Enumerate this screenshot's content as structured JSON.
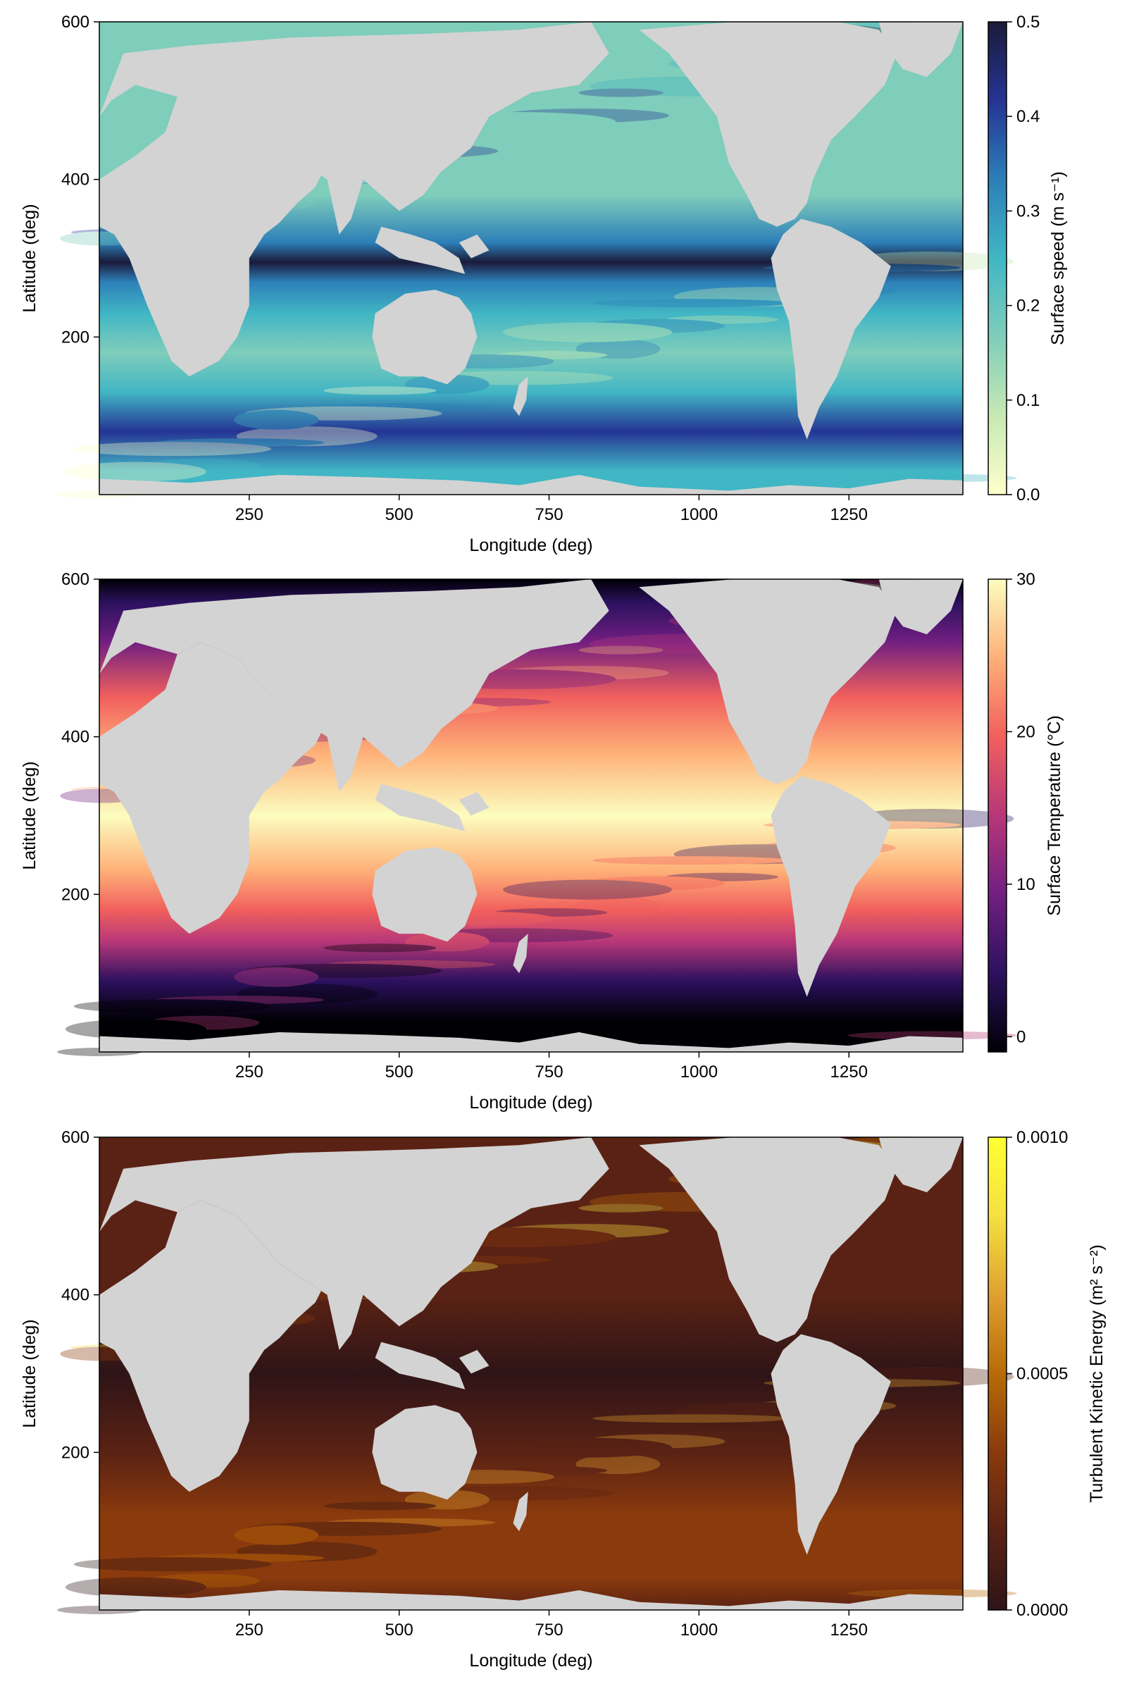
{
  "chart_data": [
    {
      "type": "heatmap",
      "title": "",
      "xlabel": "Longitude (deg)",
      "ylabel": "Latitude (deg)",
      "xlim": [
        0,
        1440
      ],
      "ylim": [
        0,
        600
      ],
      "x_ticks": [
        250,
        500,
        750,
        1000,
        1250
      ],
      "y_ticks": [
        200,
        400,
        600
      ],
      "colorbar": {
        "label": "Surface speed (m s⁻¹)",
        "range": [
          0,
          0.5
        ],
        "ticks": [
          "0.0",
          "0.1",
          "0.2",
          "0.3",
          "0.4",
          "0.5"
        ],
        "tick_values": [
          0,
          0.1,
          0.2,
          0.3,
          0.4,
          0.5
        ],
        "colormap": [
          "#ffffcc",
          "#c7e9b4",
          "#7fcdbb",
          "#41b6c4",
          "#2c7fb8",
          "#253494",
          "#1b1b3a"
        ]
      },
      "land_color": "#d3d3d3"
    },
    {
      "type": "heatmap",
      "title": "",
      "xlabel": "Longitude (deg)",
      "ylabel": "Latitude (deg)",
      "xlim": [
        0,
        1440
      ],
      "ylim": [
        0,
        600
      ],
      "x_ticks": [
        250,
        500,
        750,
        1000,
        1250
      ],
      "y_ticks": [
        200,
        400,
        600
      ],
      "colorbar": {
        "label": "Surface Temperature (°C)",
        "range": [
          -1,
          30
        ],
        "ticks": [
          "0",
          "10",
          "20",
          "30"
        ],
        "tick_values": [
          0,
          10,
          20,
          30
        ],
        "colormap": [
          "#000004",
          "#2c115f",
          "#721f81",
          "#b73779",
          "#f1605d",
          "#feb078",
          "#fcfdbf"
        ]
      },
      "land_color": "#d3d3d3"
    },
    {
      "type": "heatmap",
      "title": "",
      "xlabel": "Longitude (deg)",
      "ylabel": "Latitude (deg)",
      "xlim": [
        0,
        1440
      ],
      "ylim": [
        0,
        600
      ],
      "x_ticks": [
        250,
        500,
        750,
        1000,
        1250
      ],
      "y_ticks": [
        200,
        400,
        600
      ],
      "colorbar": {
        "label": "Turbulent Kinetic Energy (m² s⁻²)",
        "range": [
          0,
          0.001
        ],
        "ticks": [
          "0.0000",
          "0.0005",
          "0.0010"
        ],
        "tick_values": [
          0,
          0.0005,
          0.001
        ],
        "colormap": [
          "#2e1417",
          "#5a2214",
          "#8a3a0c",
          "#b86b08",
          "#e0a030",
          "#f5e040",
          "#ffff33"
        ]
      },
      "land_color": "#d3d3d3"
    }
  ]
}
